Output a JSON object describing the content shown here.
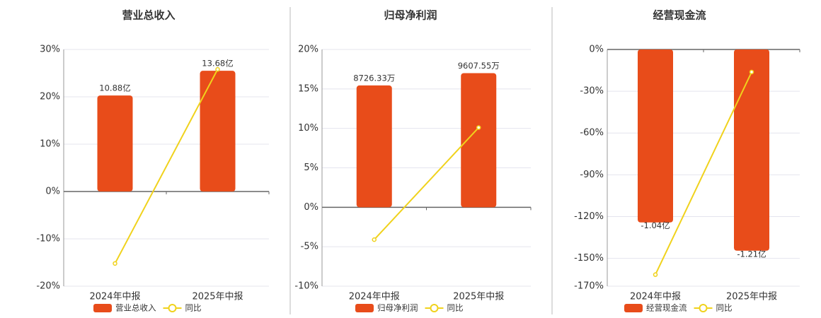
{
  "chart_data": [
    {
      "type": "bar",
      "title": "营业总收入",
      "categories": [
        "2024年中报",
        "2025年中报"
      ],
      "series": [
        {
          "name": "营业总收入",
          "color": "#e84c1a",
          "values": [
            10.88,
            13.68
          ],
          "value_labels": [
            "10.88亿",
            "13.68亿"
          ]
        },
        {
          "name": "同比",
          "type": "line",
          "color": "#f0d21c",
          "values": [
            -15.2,
            25.8
          ]
        }
      ],
      "ylim": [
        -20,
        30
      ],
      "yticks": [
        {
          "value": -20,
          "label": "-20%"
        },
        {
          "value": -10,
          "label": "-10%"
        },
        {
          "value": 0,
          "label": "0%"
        },
        {
          "value": 10,
          "label": "10%"
        },
        {
          "value": 20,
          "label": "20%"
        },
        {
          "value": 30,
          "label": "30%"
        }
      ],
      "grid": true
    },
    {
      "type": "bar",
      "title": "归母净利润",
      "categories": [
        "2024年中报",
        "2025年中报"
      ],
      "series": [
        {
          "name": "归母净利润",
          "color": "#e84c1a",
          "values": [
            8726.33,
            9607.55
          ],
          "value_labels": [
            "8726.33万",
            "9607.55万"
          ]
        },
        {
          "name": "同比",
          "type": "line",
          "color": "#f0d21c",
          "values": [
            -4.1,
            10.1
          ]
        }
      ],
      "ylim": [
        -10,
        20
      ],
      "yticks": [
        {
          "value": -10,
          "label": "-10%"
        },
        {
          "value": -5,
          "label": "-5%"
        },
        {
          "value": 0,
          "label": "0%"
        },
        {
          "value": 5,
          "label": "5%"
        },
        {
          "value": 10,
          "label": "10%"
        },
        {
          "value": 15,
          "label": "15%"
        },
        {
          "value": 20,
          "label": "20%"
        }
      ],
      "grid": true
    },
    {
      "type": "bar",
      "title": "经营现金流",
      "categories": [
        "2024年中报",
        "2025年中报"
      ],
      "series": [
        {
          "name": "经营现金流",
          "color": "#e84c1a",
          "values": [
            -1.04,
            -1.21
          ],
          "value_labels": [
            "-1.04亿",
            "-1.21亿"
          ]
        },
        {
          "name": "同比",
          "type": "line",
          "color": "#f0d21c",
          "values": [
            -161.7,
            -16.2
          ]
        }
      ],
      "ylim": [
        -170,
        0
      ],
      "yticks": [
        {
          "value": -170,
          "label": "-170%"
        },
        {
          "value": -150,
          "label": "-150%"
        },
        {
          "value": -120,
          "label": "-120%"
        },
        {
          "value": -90,
          "label": "-90%"
        },
        {
          "value": -60,
          "label": "-60%"
        },
        {
          "value": -30,
          "label": "-30%"
        },
        {
          "value": 0,
          "label": "0%"
        }
      ],
      "grid": true
    }
  ]
}
